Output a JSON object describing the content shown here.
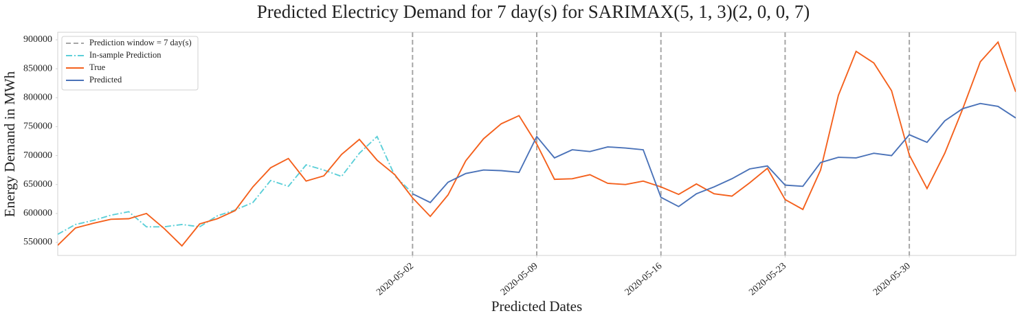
{
  "chart_data": {
    "type": "line",
    "title": "Predicted Electricy Demand for 7 day(s) for SARIMAX(5, 1, 3)(2, 0, 0, 7)",
    "x_label": "Predicted Dates",
    "y_label": "Energy Demand in MWh",
    "x": [
      "2020-04-12",
      "2020-04-13",
      "2020-04-14",
      "2020-04-15",
      "2020-04-16",
      "2020-04-17",
      "2020-04-18",
      "2020-04-19",
      "2020-04-20",
      "2020-04-21",
      "2020-04-22",
      "2020-04-23",
      "2020-04-24",
      "2020-04-25",
      "2020-04-26",
      "2020-04-27",
      "2020-04-28",
      "2020-04-29",
      "2020-04-30",
      "2020-05-01",
      "2020-05-02",
      "2020-05-03",
      "2020-05-04",
      "2020-05-05",
      "2020-05-06",
      "2020-05-07",
      "2020-05-08",
      "2020-05-09",
      "2020-05-10",
      "2020-05-11",
      "2020-05-12",
      "2020-05-13",
      "2020-05-14",
      "2020-05-15",
      "2020-05-16",
      "2020-05-17",
      "2020-05-18",
      "2020-05-19",
      "2020-05-20",
      "2020-05-21",
      "2020-05-22",
      "2020-05-23",
      "2020-05-24",
      "2020-05-25",
      "2020-05-26",
      "2020-05-27",
      "2020-05-28",
      "2020-05-29",
      "2020-05-30",
      "2020-05-31",
      "2020-06-01",
      "2020-06-02",
      "2020-06-03",
      "2020-06-04",
      "2020-06-05"
    ],
    "vlines": {
      "label": "Prediction window = 7 day(s)",
      "color": "#a6a6a6",
      "linestyle": "--",
      "x": [
        "2020-05-02",
        "2020-05-09",
        "2020-05-16",
        "2020-05-23",
        "2020-05-30"
      ]
    },
    "series": [
      {
        "name": "In-sample Prediction",
        "color": "#5bcfd8",
        "linestyle": "-.",
        "values": [
          564000,
          581000,
          588000,
          597000,
          603000,
          577000,
          577000,
          581000,
          577000,
          596000,
          606000,
          619000,
          657000,
          647000,
          684000,
          675000,
          664000,
          704000,
          733000,
          665000,
          635000,
          null,
          null,
          null,
          null,
          null,
          null,
          null,
          null,
          null,
          null,
          null,
          null,
          null,
          null,
          null,
          null,
          null,
          null,
          null,
          null,
          null,
          null,
          null,
          null,
          null,
          null,
          null,
          null,
          null,
          null,
          null,
          null,
          null,
          null
        ]
      },
      {
        "name": "True",
        "color": "#f4601c",
        "linestyle": "-",
        "values": [
          545000,
          575000,
          583000,
          590000,
          591000,
          600000,
          574000,
          544000,
          582000,
          591000,
          605000,
          646000,
          679000,
          695000,
          656000,
          665000,
          702000,
          728000,
          692000,
          667000,
          627000,
          595000,
          632000,
          691000,
          729000,
          755000,
          769000,
          720000,
          659000,
          660000,
          667000,
          652000,
          650000,
          656000,
          646000,
          633000,
          651000,
          634000,
          630000,
          653000,
          678000,
          624000,
          607000,
          675000,
          804000,
          880000,
          860000,
          812000,
          701000,
          643000,
          704000,
          780000,
          862000,
          896000,
          810000
        ]
      },
      {
        "name": "Predicted",
        "color": "#4a72b8",
        "linestyle": "-",
        "values": [
          null,
          null,
          null,
          null,
          null,
          null,
          null,
          null,
          null,
          null,
          null,
          null,
          null,
          null,
          null,
          null,
          null,
          null,
          null,
          null,
          634000,
          619000,
          654000,
          669000,
          675000,
          674000,
          671000,
          733000,
          696000,
          710000,
          707000,
          715000,
          713000,
          710000,
          628000,
          612000,
          634000,
          646000,
          660000,
          677000,
          682000,
          649000,
          647000,
          688000,
          697000,
          696000,
          704000,
          700000,
          736000,
          723000,
          760000,
          781000,
          790000,
          785000,
          765000
        ]
      }
    ],
    "xlim": [
      "2020-04-12",
      "2020-06-05"
    ],
    "xticks": [
      "2020-05-02",
      "2020-05-09",
      "2020-05-16",
      "2020-05-23",
      "2020-05-30"
    ],
    "ylim": [
      527500,
      913000
    ],
    "yticks": [
      550000,
      600000,
      650000,
      700000,
      750000,
      800000,
      850000,
      900000
    ],
    "grid": false,
    "legend": "upper left"
  }
}
